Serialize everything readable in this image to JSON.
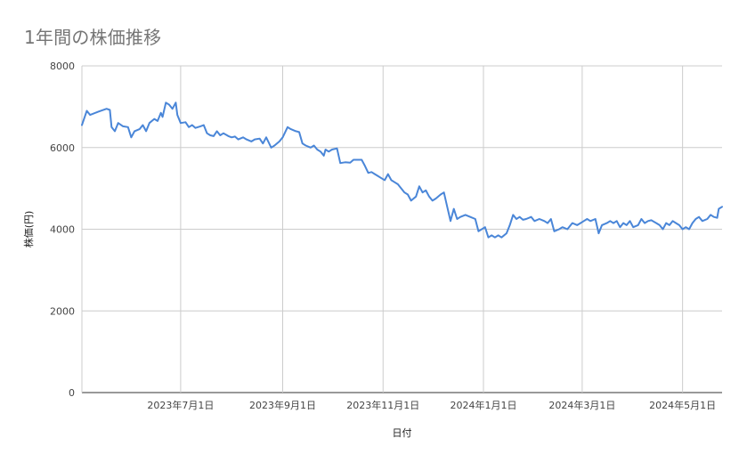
{
  "chart_data": {
    "type": "line",
    "title": "1年間の株価推移",
    "xlabel": "日付",
    "ylabel": "株価(円)",
    "ylim": [
      0,
      8000
    ],
    "yticks": [
      0,
      2000,
      4000,
      6000,
      8000
    ],
    "xlim": [
      "2023-05-02",
      "2024-05-06"
    ],
    "xtick_labels": [
      {
        "date": "2023-07-01",
        "label": "2023年7月1日"
      },
      {
        "date": "2023-09-01",
        "label": "2023年9月1日"
      },
      {
        "date": "2023-11-01",
        "label": "2023年11月1日"
      },
      {
        "date": "2024-01-01",
        "label": "2024年1月1日"
      },
      {
        "date": "2024-03-01",
        "label": "2024年3月1日"
      },
      {
        "date": "2024-05-01",
        "label": "2024年5月1日"
      }
    ],
    "grid": true,
    "legend": "none",
    "series": [
      {
        "color": "#4a86d8",
        "points": [
          [
            "2023-05-02",
            6550
          ],
          [
            "2023-05-05",
            6900
          ],
          [
            "2023-05-07",
            6800
          ],
          [
            "2023-05-12",
            6880
          ],
          [
            "2023-05-17",
            6950
          ],
          [
            "2023-05-19",
            6920
          ],
          [
            "2023-05-20",
            6500
          ],
          [
            "2023-05-22",
            6400
          ],
          [
            "2023-05-24",
            6600
          ],
          [
            "2023-05-27",
            6520
          ],
          [
            "2023-05-30",
            6500
          ],
          [
            "2023-06-01",
            6250
          ],
          [
            "2023-06-03",
            6400
          ],
          [
            "2023-06-06",
            6450
          ],
          [
            "2023-06-08",
            6550
          ],
          [
            "2023-06-10",
            6400
          ],
          [
            "2023-06-12",
            6600
          ],
          [
            "2023-06-15",
            6700
          ],
          [
            "2023-06-17",
            6650
          ],
          [
            "2023-06-19",
            6850
          ],
          [
            "2023-06-20",
            6750
          ],
          [
            "2023-06-22",
            7100
          ],
          [
            "2023-06-24",
            7050
          ],
          [
            "2023-06-26",
            6950
          ],
          [
            "2023-06-28",
            7100
          ],
          [
            "2023-06-29",
            6800
          ],
          [
            "2023-07-01",
            6600
          ],
          [
            "2023-07-04",
            6620
          ],
          [
            "2023-07-06",
            6500
          ],
          [
            "2023-07-08",
            6550
          ],
          [
            "2023-07-10",
            6480
          ],
          [
            "2023-07-13",
            6520
          ],
          [
            "2023-07-15",
            6550
          ],
          [
            "2023-07-17",
            6350
          ],
          [
            "2023-07-19",
            6300
          ],
          [
            "2023-07-21",
            6280
          ],
          [
            "2023-07-23",
            6400
          ],
          [
            "2023-07-25",
            6300
          ],
          [
            "2023-07-27",
            6350
          ],
          [
            "2023-07-30",
            6280
          ],
          [
            "2023-08-01",
            6250
          ],
          [
            "2023-08-03",
            6270
          ],
          [
            "2023-08-05",
            6200
          ],
          [
            "2023-08-08",
            6250
          ],
          [
            "2023-08-10",
            6200
          ],
          [
            "2023-08-13",
            6150
          ],
          [
            "2023-08-15",
            6200
          ],
          [
            "2023-08-18",
            6220
          ],
          [
            "2023-08-20",
            6100
          ],
          [
            "2023-08-22",
            6250
          ],
          [
            "2023-08-25",
            6000
          ],
          [
            "2023-08-27",
            6050
          ],
          [
            "2023-08-30",
            6150
          ],
          [
            "2023-09-01",
            6250
          ],
          [
            "2023-09-04",
            6500
          ],
          [
            "2023-09-06",
            6450
          ],
          [
            "2023-09-09",
            6400
          ],
          [
            "2023-09-11",
            6380
          ],
          [
            "2023-09-13",
            6100
          ],
          [
            "2023-09-15",
            6050
          ],
          [
            "2023-09-18",
            6000
          ],
          [
            "2023-09-20",
            6050
          ],
          [
            "2023-09-22",
            5950
          ],
          [
            "2023-09-24",
            5900
          ],
          [
            "2023-09-26",
            5800
          ],
          [
            "2023-09-27",
            5950
          ],
          [
            "2023-09-29",
            5900
          ],
          [
            "2023-10-01",
            5950
          ],
          [
            "2023-10-04",
            5980
          ],
          [
            "2023-10-06",
            5620
          ],
          [
            "2023-10-09",
            5640
          ],
          [
            "2023-10-12",
            5630
          ],
          [
            "2023-10-14",
            5700
          ],
          [
            "2023-10-17",
            5700
          ],
          [
            "2023-10-19",
            5700
          ],
          [
            "2023-10-21",
            5550
          ],
          [
            "2023-10-23",
            5380
          ],
          [
            "2023-10-25",
            5400
          ],
          [
            "2023-10-27",
            5350
          ],
          [
            "2023-10-29",
            5300
          ],
          [
            "2023-10-31",
            5250
          ],
          [
            "2023-11-02",
            5200
          ],
          [
            "2023-11-04",
            5350
          ],
          [
            "2023-11-06",
            5200
          ],
          [
            "2023-11-08",
            5150
          ],
          [
            "2023-11-10",
            5100
          ],
          [
            "2023-11-12",
            5000
          ],
          [
            "2023-11-14",
            4900
          ],
          [
            "2023-11-16",
            4850
          ],
          [
            "2023-11-18",
            4700
          ],
          [
            "2023-11-21",
            4800
          ],
          [
            "2023-11-23",
            5050
          ],
          [
            "2023-11-25",
            4900
          ],
          [
            "2023-11-27",
            4950
          ],
          [
            "2023-11-29",
            4800
          ],
          [
            "2023-12-01",
            4700
          ],
          [
            "2023-12-03",
            4750
          ],
          [
            "2023-12-06",
            4850
          ],
          [
            "2023-12-08",
            4900
          ],
          [
            "2023-12-10",
            4550
          ],
          [
            "2023-12-12",
            4200
          ],
          [
            "2023-12-14",
            4500
          ],
          [
            "2023-12-16",
            4250
          ],
          [
            "2023-12-18",
            4300
          ],
          [
            "2023-12-21",
            4350
          ],
          [
            "2023-12-24",
            4300
          ],
          [
            "2023-12-27",
            4250
          ],
          [
            "2023-12-29",
            3950
          ],
          [
            "2023-12-31",
            4000
          ],
          [
            "2024-01-02",
            4050
          ],
          [
            "2024-01-04",
            3800
          ],
          [
            "2024-01-06",
            3850
          ],
          [
            "2024-01-08",
            3800
          ],
          [
            "2024-01-10",
            3850
          ],
          [
            "2024-01-12",
            3800
          ],
          [
            "2024-01-15",
            3900
          ],
          [
            "2024-01-17",
            4100
          ],
          [
            "2024-01-19",
            4350
          ],
          [
            "2024-01-21",
            4250
          ],
          [
            "2024-01-23",
            4300
          ],
          [
            "2024-01-25",
            4230
          ],
          [
            "2024-01-27",
            4250
          ],
          [
            "2024-01-30",
            4300
          ],
          [
            "2024-02-01",
            4200
          ],
          [
            "2024-02-04",
            4250
          ],
          [
            "2024-02-07",
            4200
          ],
          [
            "2024-02-09",
            4150
          ],
          [
            "2024-02-11",
            4250
          ],
          [
            "2024-02-13",
            3950
          ],
          [
            "2024-02-16",
            4000
          ],
          [
            "2024-02-18",
            4050
          ],
          [
            "2024-02-21",
            4000
          ],
          [
            "2024-02-24",
            4150
          ],
          [
            "2024-02-27",
            4100
          ],
          [
            "2024-02-29",
            4150
          ],
          [
            "2024-03-02",
            4200
          ],
          [
            "2024-03-04",
            4250
          ],
          [
            "2024-03-06",
            4200
          ],
          [
            "2024-03-09",
            4250
          ],
          [
            "2024-03-11",
            3900
          ],
          [
            "2024-03-13",
            4100
          ],
          [
            "2024-03-16",
            4150
          ],
          [
            "2024-03-18",
            4200
          ],
          [
            "2024-03-20",
            4150
          ],
          [
            "2024-03-22",
            4200
          ],
          [
            "2024-03-24",
            4050
          ],
          [
            "2024-03-26",
            4150
          ],
          [
            "2024-03-28",
            4100
          ],
          [
            "2024-03-30",
            4200
          ],
          [
            "2024-04-01",
            4050
          ],
          [
            "2024-04-04",
            4100
          ],
          [
            "2024-04-06",
            4250
          ],
          [
            "2024-04-08",
            4150
          ],
          [
            "2024-04-10",
            4200
          ],
          [
            "2024-04-12",
            4220
          ],
          [
            "2024-04-15",
            4150
          ],
          [
            "2024-04-17",
            4100
          ],
          [
            "2024-04-19",
            4000
          ],
          [
            "2024-04-21",
            4150
          ],
          [
            "2024-04-23",
            4100
          ],
          [
            "2024-04-25",
            4200
          ],
          [
            "2024-04-27",
            4150
          ],
          [
            "2024-04-29",
            4100
          ],
          [
            "2024-05-01",
            4000
          ],
          [
            "2024-05-03",
            4050
          ],
          [
            "2024-05-05",
            4000
          ],
          [
            "2024-05-07",
            4150
          ],
          [
            "2024-05-09",
            4250
          ],
          [
            "2024-05-11",
            4300
          ],
          [
            "2024-05-13",
            4200
          ],
          [
            "2024-05-16",
            4250
          ],
          [
            "2024-05-18",
            4350
          ],
          [
            "2024-05-20",
            4300
          ],
          [
            "2024-05-22",
            4280
          ],
          [
            "2024-05-23",
            4500
          ],
          [
            "2024-05-25",
            4550
          ]
        ]
      }
    ]
  }
}
